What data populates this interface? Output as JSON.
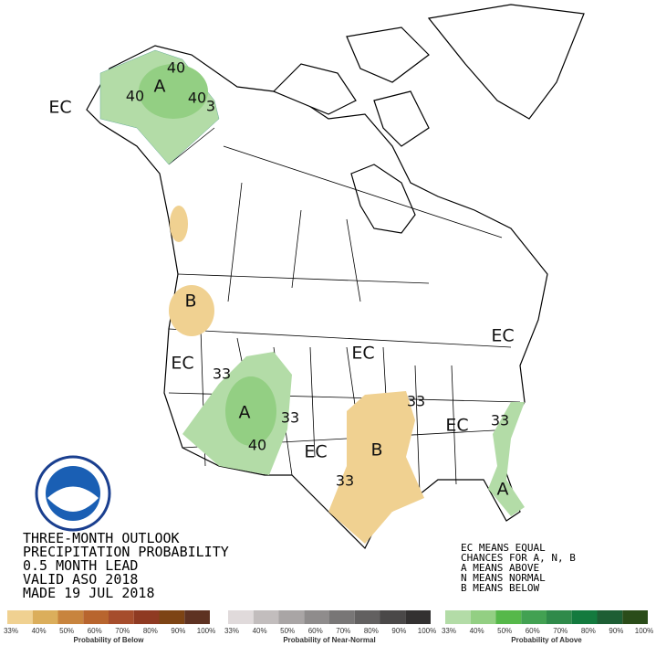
{
  "title_lines": [
    "THREE-MONTH OUTLOOK",
    "PRECIPITATION PROBABILITY",
    "0.5 MONTH LEAD",
    "VALID ASO 2018",
    "MADE 19 JUL 2018"
  ],
  "key_lines": [
    "EC MEANS EQUAL",
    "CHANCES FOR A, N, B",
    "A MEANS ABOVE",
    "N MEANS NORMAL",
    "B MEANS BELOW"
  ],
  "map_labels": [
    "EC",
    "A",
    "40",
    "40",
    "40",
    "3",
    "B",
    "EC",
    "33",
    "A",
    "33",
    "40",
    "EC",
    "B",
    "33",
    "33",
    "EC",
    "EC",
    "EC",
    "33",
    "A"
  ],
  "scales": [
    {
      "title": "Probability of Below",
      "colors": [
        "#f0d191",
        "#dbae5b",
        "#c8843e",
        "#b8652e",
        "#a64d2c",
        "#8f3a22",
        "#7d4414",
        "#5e3222"
      ],
      "labels": [
        "33%",
        "40%",
        "50%",
        "60%",
        "70%",
        "80%",
        "90%",
        "100%"
      ]
    },
    {
      "title": "Probability of Near-Normal",
      "colors": [
        "#e0dadb",
        "#c2bdbd",
        "#a9a5a5",
        "#8f8c8c",
        "#787676",
        "#626060",
        "#4a4848",
        "#333131"
      ],
      "labels": [
        "33%",
        "40%",
        "50%",
        "60%",
        "70%",
        "80%",
        "90%",
        "100%"
      ]
    },
    {
      "title": "Probability of Above",
      "colors": [
        "#b3dca7",
        "#93cf83",
        "#56b84a",
        "#42a152",
        "#2f8a4a",
        "#137a3e",
        "#1d5e34",
        "#2a4c19"
      ],
      "labels": [
        "33%",
        "40%",
        "50%",
        "60%",
        "70%",
        "80%",
        "90%",
        "100%"
      ]
    }
  ]
}
